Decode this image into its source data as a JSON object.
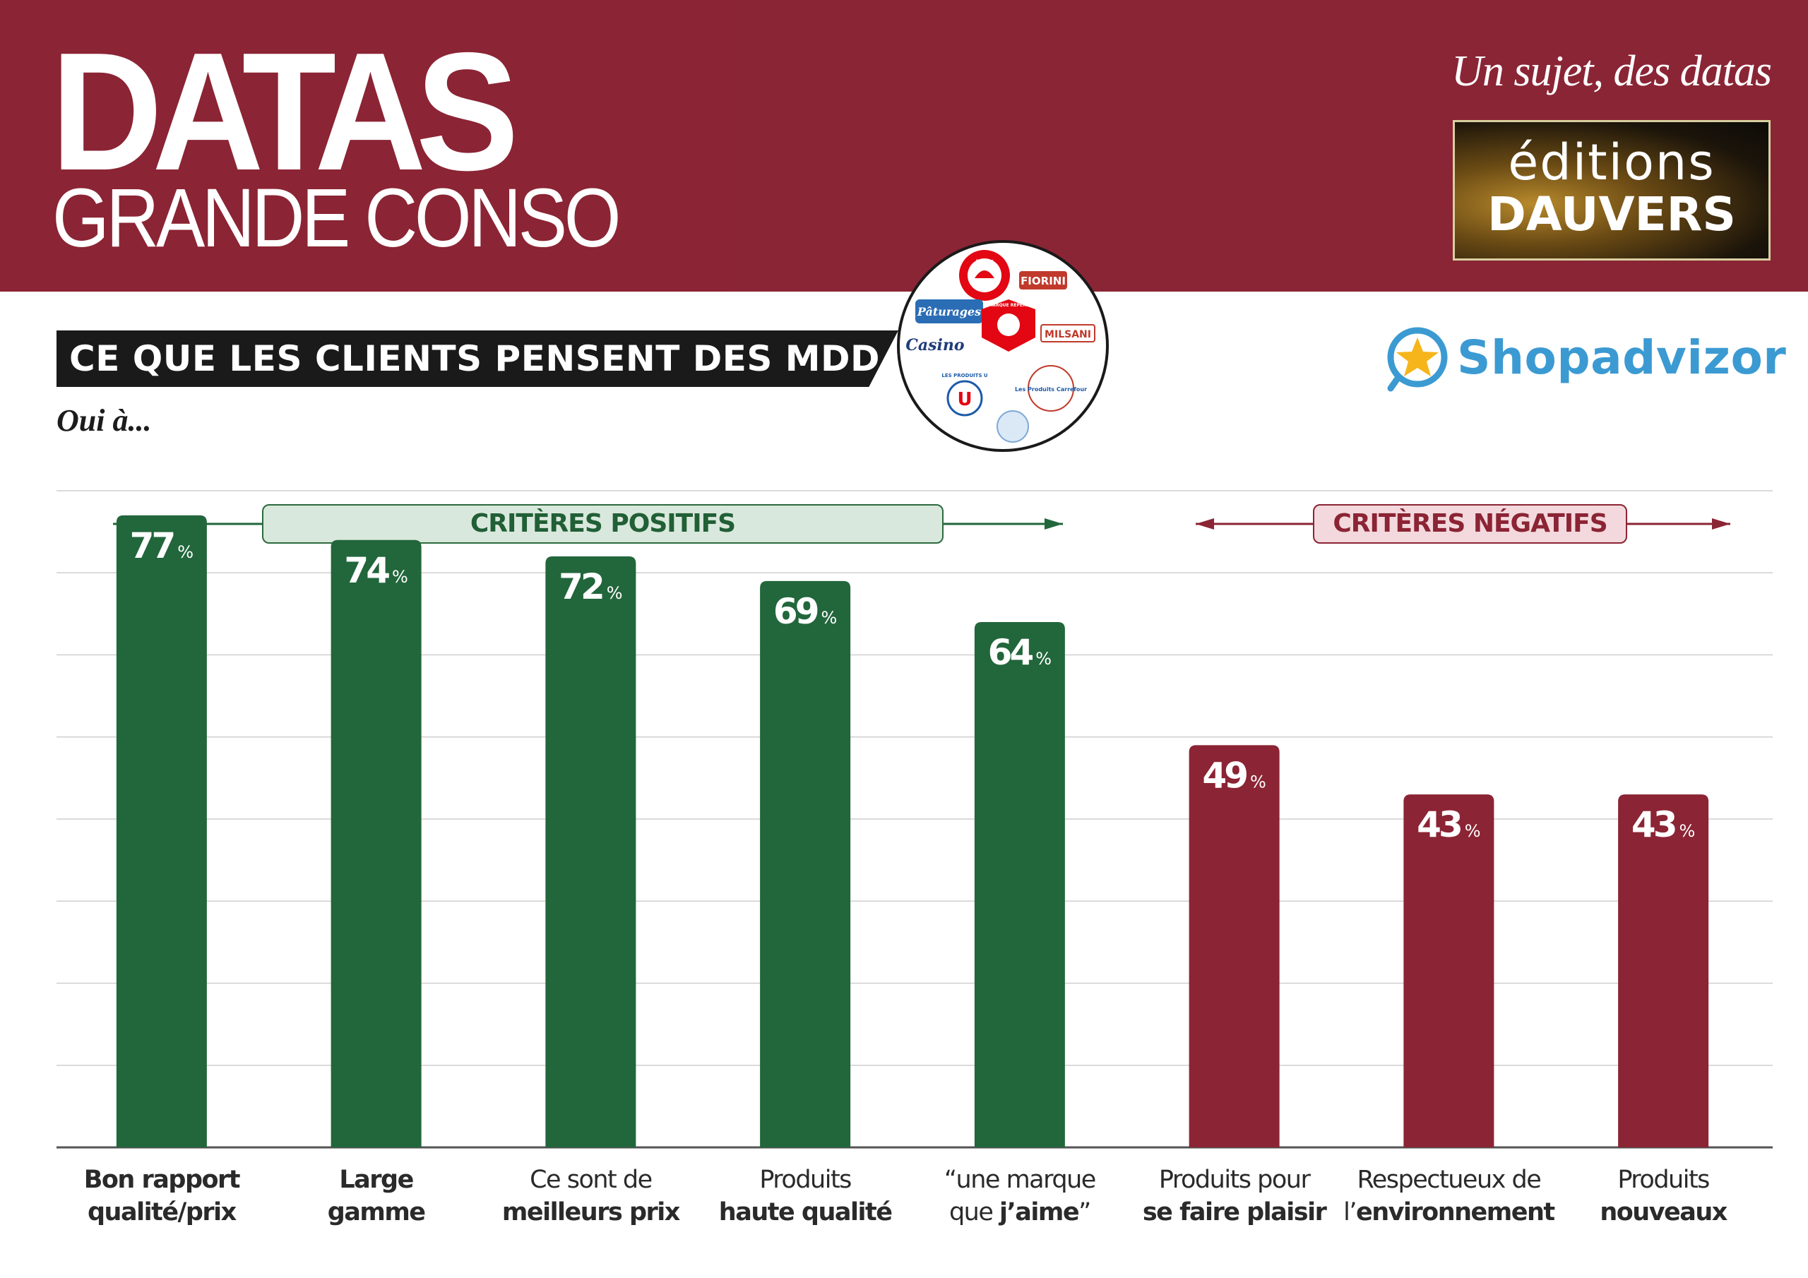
{
  "header": {
    "brand_title": "DATAS",
    "brand_subtitle": "GRANDE CONSO",
    "tagline": "Un sujet, des datas",
    "publisher_line1": "éditions",
    "publisher_line2": "DAUVERS"
  },
  "section": {
    "title": "CE QUE LES CLIENTS PENSENT DES MDD...",
    "subtitle": "Oui à..."
  },
  "brand_logos": [
    "Auchan",
    "FIORINI",
    "Pâturages",
    "MARQUE REPÈRE",
    "MILSANI",
    "Casino",
    "LES PRODUITS U",
    "Les Produits Carrefour"
  ],
  "partner": {
    "name": "Shopadvizor",
    "icon": "star-magnifier-icon"
  },
  "colors": {
    "header_bg": "#8b2434",
    "positive": "#22663c",
    "negative": "#8b2434",
    "partner_blue": "#3c9ad2"
  },
  "chart_data": {
    "type": "bar",
    "title": "CE QUE LES CLIENTS PENSENT DES MDD...",
    "subtitle": "Oui à...",
    "groups": [
      {
        "label": "CRITÈRES POSITIFS",
        "color": "#22663c",
        "categories": [
          0,
          1,
          2,
          3,
          4
        ]
      },
      {
        "label": "CRITÈRES NÉGATIFS",
        "color": "#8b2434",
        "categories": [
          5,
          6,
          7
        ]
      }
    ],
    "categories": [
      {
        "normal_top": "",
        "bold_top": "Bon rapport",
        "normal_bottom": "",
        "bold_bottom": "qualité/prix"
      },
      {
        "normal_top": "",
        "bold_top": "Large",
        "normal_bottom": "",
        "bold_bottom": "gamme"
      },
      {
        "normal_top": "Ce sont de",
        "bold_top": "",
        "normal_bottom": "",
        "bold_bottom": "meilleurs prix"
      },
      {
        "normal_top": "Produits",
        "bold_top": "",
        "normal_bottom": "",
        "bold_bottom": "haute qualité"
      },
      {
        "normal_top": "“une marque",
        "bold_top": "",
        "normal_bottom": "que ",
        "bold_bottom": "j’aime",
        "suffix": "”"
      },
      {
        "normal_top": "Produits pour",
        "bold_top": "",
        "normal_bottom": "",
        "bold_bottom": "se faire plaisir"
      },
      {
        "normal_top": "Respectueux de",
        "bold_top": "",
        "normal_bottom": "l’",
        "bold_bottom": "environnement"
      },
      {
        "normal_top": "Produits",
        "bold_top": "",
        "normal_bottom": "",
        "bold_bottom": "nouveaux"
      }
    ],
    "values": [
      77,
      74,
      72,
      69,
      64,
      49,
      43,
      43
    ],
    "unit": "%",
    "ylim": [
      0,
      80
    ],
    "grid": true
  }
}
